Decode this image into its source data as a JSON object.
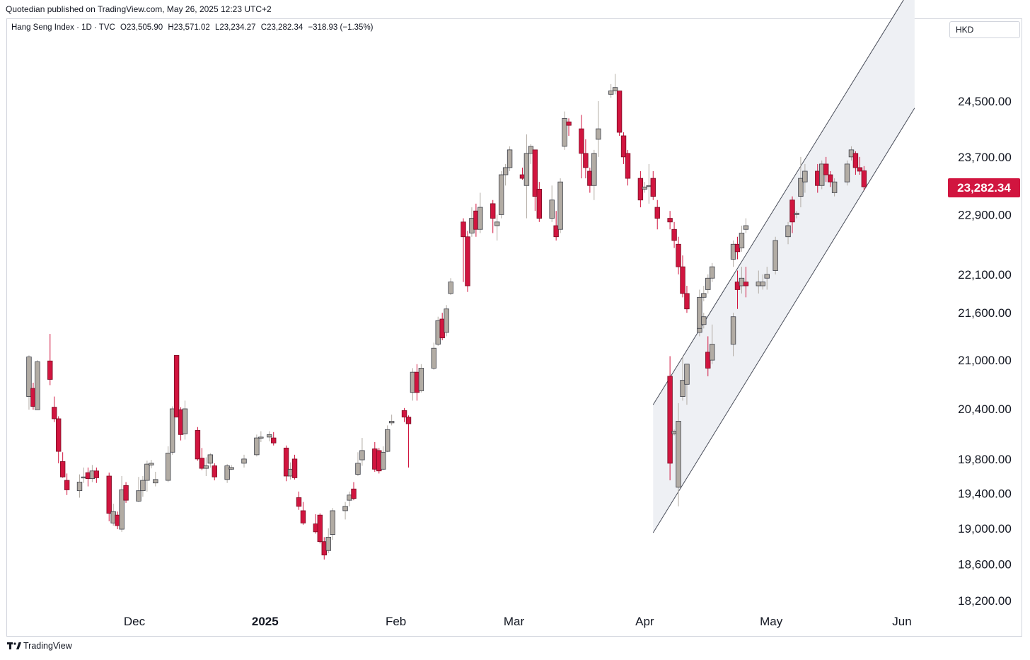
{
  "header": {
    "credit": "Quotedian published on TradingView.com, May 26, 2025 12:23 UTC+2"
  },
  "legend": {
    "name": "Hang Seng Index · 1D · TVC",
    "open": "O23,505.90",
    "high": "H23,571.02",
    "low": "L23,234.27",
    "close": "C23,282.34",
    "change": "−318.93 (−1.35%)"
  },
  "currency": "HKD",
  "last_price_label": "23,282.34",
  "footer": {
    "brand": "TradingView"
  },
  "colors": {
    "up": "#b2aca4",
    "down": "#d1153f",
    "channel_fill": "#eef0f4",
    "channel_line": "#4a4e5a"
  },
  "chart_data": {
    "type": "candlestick",
    "y_scale": "log",
    "ylim": [
      18000,
      25600
    ],
    "y_ticks": [
      {
        "value": 24500,
        "label": "24,500.00"
      },
      {
        "value": 23700,
        "label": "23,700.00"
      },
      {
        "value": 22900,
        "label": "22,900.00"
      },
      {
        "value": 22100,
        "label": "22,100.00"
      },
      {
        "value": 21600,
        "label": "21,600.00"
      },
      {
        "value": 21000,
        "label": "21,000.00"
      },
      {
        "value": 20400,
        "label": "20,400.00"
      },
      {
        "value": 19800,
        "label": "19,800.00"
      },
      {
        "value": 19400,
        "label": "19,400.00"
      },
      {
        "value": 19000,
        "label": "19,000.00"
      },
      {
        "value": 18600,
        "label": "18,600.00"
      },
      {
        "value": 18200,
        "label": "18,200.00"
      }
    ],
    "x_ticks": [
      {
        "label": "Dec",
        "date": "2024-12-01"
      },
      {
        "label": "2025",
        "date": "2025-01-01"
      },
      {
        "label": "Feb",
        "date": "2025-02-01"
      },
      {
        "label": "Mar",
        "date": "2025-03-01"
      },
      {
        "label": "Apr",
        "date": "2025-04-01"
      },
      {
        "label": "May",
        "date": "2025-05-01"
      },
      {
        "label": "Jun",
        "date": "2025-06-01"
      }
    ],
    "x_range": [
      "2024-11-06",
      "2025-06-09"
    ],
    "candles": [
      [
        "2024-11-06",
        20550,
        21040,
        20390,
        21060
      ],
      [
        "2024-11-07",
        20650,
        20430,
        20390,
        20720
      ],
      [
        "2024-11-08",
        20390,
        20980,
        20390,
        21000
      ],
      [
        "2024-11-11",
        20990,
        20760,
        20690,
        21330
      ],
      [
        "2024-11-12",
        20420,
        20280,
        20240,
        20550
      ],
      [
        "2024-11-13",
        20280,
        19890,
        19750,
        20310
      ],
      [
        "2024-11-14",
        19770,
        19590,
        19580,
        19880
      ],
      [
        "2024-11-15",
        19550,
        19440,
        19380,
        19630
      ],
      [
        "2024-11-18",
        19430,
        19530,
        19350,
        19620
      ],
      [
        "2024-11-19",
        19580,
        19590,
        19520,
        19700
      ],
      [
        "2024-11-20",
        19640,
        19570,
        19480,
        19700
      ],
      [
        "2024-11-21",
        19570,
        19660,
        19530,
        19730
      ],
      [
        "2024-11-22",
        19660,
        19580,
        19520,
        19700
      ],
      [
        "2024-11-25",
        19600,
        19170,
        19080,
        19640
      ],
      [
        "2024-11-26",
        19060,
        19190,
        19030,
        19280
      ],
      [
        "2024-11-27",
        19150,
        19030,
        18990,
        19190
      ],
      [
        "2024-11-28",
        18990,
        19440,
        18960,
        19600
      ],
      [
        "2024-11-29",
        19490,
        19320,
        19290,
        19530
      ],
      [
        "2024-12-02",
        19310,
        19430,
        19300,
        19590
      ],
      [
        "2024-12-03",
        19430,
        19550,
        19360,
        19600
      ],
      [
        "2024-12-04",
        19550,
        19740,
        19420,
        19780
      ],
      [
        "2024-12-05",
        19730,
        19750,
        19690,
        19790
      ],
      [
        "2024-12-06",
        19520,
        19560,
        19480,
        19650
      ],
      [
        "2024-12-09",
        19550,
        19870,
        19530,
        19950
      ],
      [
        "2024-12-10",
        19880,
        20400,
        19850,
        20430
      ],
      [
        "2024-12-11",
        21060,
        20300,
        20300,
        21060
      ],
      [
        "2024-12-12",
        20390,
        20090,
        20020,
        20420
      ],
      [
        "2024-12-13",
        20100,
        20400,
        20030,
        20500
      ],
      [
        "2024-12-16",
        20140,
        19800,
        19780,
        20180
      ],
      [
        "2024-12-17",
        19810,
        19690,
        19670,
        19930
      ],
      [
        "2024-12-18",
        19690,
        19720,
        19600,
        19820
      ],
      [
        "2024-12-19",
        19750,
        19850,
        19700,
        19870
      ],
      [
        "2024-12-20",
        19720,
        19590,
        19550,
        19750
      ],
      [
        "2024-12-23",
        19560,
        19720,
        19520,
        19740
      ],
      [
        "2024-12-24",
        19680,
        19700,
        19670,
        19730
      ],
      [
        "2024-12-27",
        19750,
        19800,
        19700,
        19850
      ],
      [
        "2024-12-30",
        19850,
        20050,
        19830,
        20090
      ],
      [
        "2024-12-31",
        20050,
        20060,
        20000,
        20130
      ],
      [
        "2025-01-02",
        20060,
        20090,
        20010,
        20130
      ],
      [
        "2025-01-03",
        20050,
        19990,
        19960,
        20120
      ],
      [
        "2025-01-06",
        19930,
        19600,
        19540,
        19960
      ],
      [
        "2025-01-07",
        19600,
        19680,
        19560,
        19760
      ],
      [
        "2025-01-08",
        19800,
        19580,
        19560,
        19850
      ],
      [
        "2025-01-09",
        19350,
        19250,
        19210,
        19420
      ],
      [
        "2025-01-10",
        19200,
        19060,
        19040,
        19300
      ],
      [
        "2025-01-13",
        19050,
        18960,
        18940,
        19160
      ],
      [
        "2025-01-14",
        19150,
        18850,
        18830,
        19170
      ],
      [
        "2025-01-15",
        18850,
        18700,
        18650,
        18900
      ],
      [
        "2025-01-16",
        18750,
        18900,
        18720,
        19000
      ],
      [
        "2025-01-17",
        18930,
        19200,
        18870,
        19230
      ],
      [
        "2025-01-20",
        19200,
        19250,
        19100,
        19300
      ],
      [
        "2025-01-21",
        19320,
        19380,
        19250,
        19420
      ],
      [
        "2025-01-22",
        19450,
        19340,
        19320,
        19530
      ],
      [
        "2025-01-23",
        19620,
        19750,
        19600,
        19880
      ],
      [
        "2025-01-24",
        19790,
        19900,
        19720,
        20050
      ],
      [
        "2025-01-27",
        19920,
        19680,
        19650,
        20000
      ],
      [
        "2025-01-28",
        19900,
        19660,
        19630,
        19930
      ],
      [
        "2025-01-29",
        19680,
        19880,
        19670,
        19950
      ],
      [
        "2025-01-30",
        19890,
        20150,
        19880,
        20200
      ],
      [
        "2025-01-31",
        20230,
        20250,
        20200,
        20330
      ],
      [
        "2025-02-03",
        20380,
        20300,
        20240,
        20410
      ],
      [
        "2025-02-04",
        20300,
        20220,
        19700,
        20320
      ],
      [
        "2025-02-05",
        20600,
        20850,
        20500,
        20900
      ],
      [
        "2025-02-06",
        20850,
        20600,
        20500,
        20950
      ],
      [
        "2025-02-07",
        20620,
        20900,
        20600,
        20950
      ],
      [
        "2025-02-10",
        20900,
        21150,
        20880,
        21220
      ],
      [
        "2025-02-11",
        21200,
        21500,
        21180,
        21550
      ],
      [
        "2025-02-12",
        21520,
        21280,
        21250,
        21600
      ],
      [
        "2025-02-13",
        21350,
        21650,
        21300,
        21700
      ],
      [
        "2025-02-14",
        21850,
        22000,
        21830,
        22050
      ],
      [
        "2025-02-17",
        22800,
        22600,
        22000,
        22850
      ],
      [
        "2025-02-18",
        22600,
        21950,
        21870,
        22680
      ],
      [
        "2025-02-19",
        22650,
        22850,
        22600,
        23000
      ],
      [
        "2025-02-20",
        22950,
        22700,
        22600,
        23050
      ],
      [
        "2025-02-21",
        22700,
        23000,
        22650,
        23200
      ],
      [
        "2025-02-24",
        23050,
        22850,
        22650,
        23100
      ],
      [
        "2025-02-25",
        22750,
        22800,
        22550,
        22900
      ],
      [
        "2025-02-26",
        22900,
        23450,
        22850,
        23500
      ],
      [
        "2025-02-27",
        23450,
        23550,
        23300,
        23600
      ],
      [
        "2025-02-28",
        23550,
        23800,
        23500,
        23850
      ],
      [
        "2025-03-03",
        23450,
        23400,
        23380,
        23550
      ],
      [
        "2025-03-04",
        23300,
        23750,
        22850,
        24020
      ],
      [
        "2025-03-05",
        23750,
        23850,
        23600,
        23880
      ],
      [
        "2025-03-06",
        23800,
        23150,
        22950,
        23750
      ],
      [
        "2025-03-07",
        23250,
        22850,
        22800,
        23350
      ],
      [
        "2025-03-10",
        22850,
        23100,
        22800,
        23300
      ],
      [
        "2025-03-11",
        22750,
        22600,
        22550,
        22950
      ],
      [
        "2025-03-12",
        22700,
        23350,
        22650,
        23400
      ],
      [
        "2025-03-13",
        23850,
        24250,
        23800,
        24350
      ],
      [
        "2025-03-14",
        24200,
        24150,
        24000,
        24250
      ],
      [
        "2025-03-17",
        24100,
        23750,
        23400,
        24300
      ],
      [
        "2025-03-18",
        23750,
        23550,
        23400,
        23950
      ],
      [
        "2025-03-19",
        23500,
        23300,
        23200,
        23550
      ],
      [
        "2025-03-20",
        23300,
        23750,
        23100,
        23800
      ],
      [
        "2025-03-21",
        23950,
        24100,
        23700,
        24500
      ],
      [
        "2025-03-24",
        24600,
        24650,
        24550,
        24750
      ],
      [
        "2025-03-25",
        24650,
        24700,
        24600,
        24900
      ],
      [
        "2025-03-26",
        24650,
        24050,
        24000,
        24650
      ],
      [
        "2025-03-27",
        24000,
        23700,
        23600,
        24050
      ],
      [
        "2025-03-28",
        23750,
        23400,
        23300,
        23800
      ],
      [
        "2025-03-31",
        23400,
        23100,
        23000,
        23500
      ],
      [
        "2025-04-01",
        23250,
        23280,
        23200,
        23350
      ],
      [
        "2025-04-02",
        23300,
        23300,
        23050,
        23600
      ],
      [
        "2025-04-03",
        23400,
        23150,
        23100,
        23500
      ],
      [
        "2025-04-04",
        23000,
        22850,
        22700,
        23100
      ],
      [
        "2025-04-07",
        22850,
        22800,
        22700,
        22950
      ],
      [
        "2025-04-08",
        22700,
        22550,
        22450,
        22800
      ],
      [
        "2025-04-09",
        22500,
        22200,
        22100,
        22600
      ],
      [
        "2025-04-10",
        22200,
        21850,
        21800,
        22350
      ],
      [
        "2025-04-11",
        21850,
        21650,
        21600,
        21950
      ],
      [
        "2025-04-14",
        21400,
        21800,
        21350,
        21900
      ],
      [
        "2025-04-15",
        21800,
        21850,
        21750,
        21950
      ],
      [
        "2025-04-16",
        21900,
        22050,
        21850,
        22100
      ],
      [
        "2025-04-17",
        22050,
        22200,
        22000,
        22250
      ],
      [
        "2025-04-22",
        22300,
        22500,
        22200,
        22550
      ],
      [
        "2025-04-23",
        22500,
        22400,
        22300,
        22600
      ],
      [
        "2025-04-24",
        22450,
        22650,
        22400,
        22750
      ],
      [
        "2025-04-25",
        22700,
        22750,
        22650,
        22850
      ]
    ],
    "candles_after_gap": [
      [
        "2025-04-07",
        20800,
        19750,
        19550,
        21050
      ],
      [
        "2025-04-08",
        20100,
        20130,
        20080,
        20150
      ],
      [
        "2025-04-09",
        19470,
        20250,
        19250,
        20470
      ],
      [
        "2025-04-10",
        20550,
        20750,
        20500,
        21050
      ],
      [
        "2025-04-11",
        20700,
        20950,
        20450,
        20950
      ],
      [
        "2025-04-14",
        21350,
        21400,
        21300,
        21500
      ],
      [
        "2025-04-15",
        21450,
        21550,
        21400,
        21600
      ],
      [
        "2025-04-16",
        21100,
        20900,
        20800,
        21300
      ],
      [
        "2025-04-17",
        21000,
        21200,
        20950,
        21450
      ],
      [
        "2025-04-22",
        21200,
        21550,
        21050,
        21600
      ],
      [
        "2025-04-23",
        22000,
        21900,
        21650,
        22150
      ],
      [
        "2025-04-24",
        21950,
        22050,
        21850,
        22200
      ],
      [
        "2025-04-25",
        22000,
        21950,
        21800,
        22200
      ],
      [
        "2025-04-28",
        21950,
        22000,
        21850,
        22150
      ],
      [
        "2025-04-29",
        21950,
        22000,
        21900,
        22100
      ],
      [
        "2025-04-30",
        22050,
        22100,
        21900,
        22200
      ],
      [
        "2025-05-02",
        22150,
        22550,
        22100,
        22600
      ],
      [
        "2025-05-05",
        22600,
        22750,
        22500,
        22800
      ],
      [
        "2025-05-06",
        23100,
        22800,
        22650,
        23150
      ],
      [
        "2025-05-07",
        22900,
        22920,
        22850,
        22950
      ],
      [
        "2025-05-08",
        23150,
        23400,
        23000,
        23700
      ],
      [
        "2025-05-09",
        23350,
        23500,
        23200,
        23600
      ],
      [
        "2025-05-12",
        23500,
        23300,
        23200,
        23600
      ],
      [
        "2025-05-13",
        23300,
        23600,
        23250,
        23650
      ],
      [
        "2025-05-14",
        23600,
        23450,
        23350,
        23700
      ],
      [
        "2025-05-15",
        23450,
        23350,
        23280,
        23500
      ],
      [
        "2025-05-16",
        23200,
        23350,
        23150,
        23400
      ],
      [
        "2025-05-19",
        23350,
        23600,
        23300,
        23650
      ],
      [
        "2025-05-20",
        23700,
        23800,
        23650,
        23850
      ],
      [
        "2025-05-21",
        23750,
        23550,
        23450,
        23780
      ],
      [
        "2025-05-22",
        23550,
        23500,
        23450,
        23700
      ],
      [
        "2025-05-23",
        23505.9,
        23282.34,
        23234.27,
        23571.02
      ]
    ],
    "channel": {
      "start_date": "2025-04-03",
      "end_date": "2025-06-04",
      "upper": [
        20450,
        26300
      ],
      "lower": [
        18950,
        24400
      ]
    }
  }
}
